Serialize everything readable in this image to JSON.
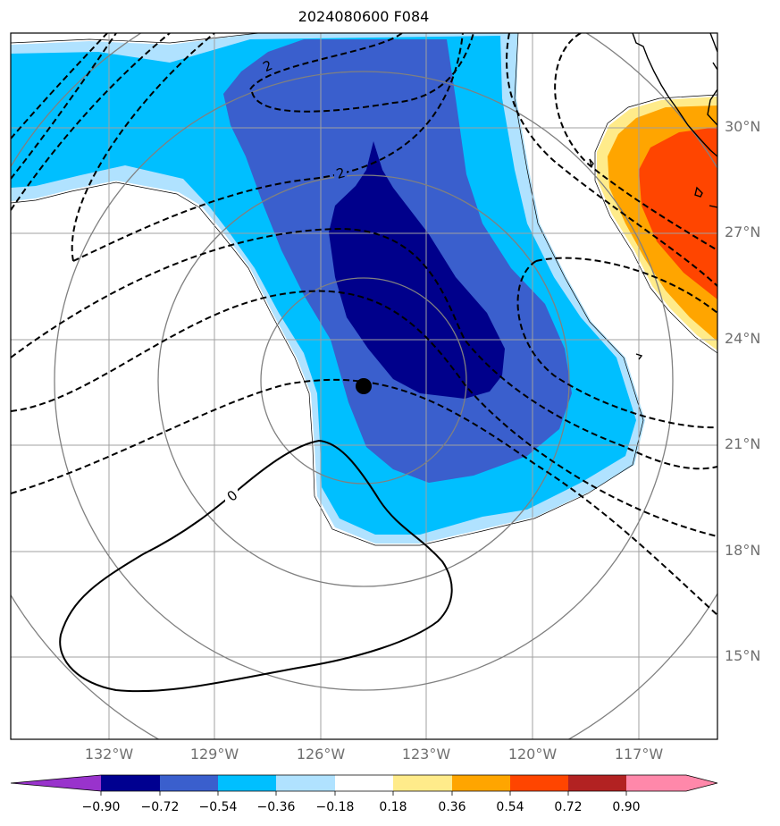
{
  "title": "2024080600 F084",
  "axes": {
    "lat_labels": [
      "30°N",
      "27°N",
      "24°N",
      "21°N",
      "18°N",
      "15°N"
    ],
    "lon_labels": [
      "132°W",
      "129°W",
      "126°W",
      "123°W",
      "120°W",
      "117°W"
    ],
    "lon_extent": [
      -134.8,
      -114.8
    ],
    "lat_extent": [
      12.7,
      32.7
    ]
  },
  "contour_labels": [
    "2",
    "2",
    "0"
  ],
  "contour_line_style": {
    "negative": "dashed",
    "zero": "solid",
    "color": "#000000"
  },
  "storm_center_marker": {
    "lon": -124.9,
    "lat": 22.6,
    "symbol": "filled-circle",
    "color": "#000000"
  },
  "range_rings": {
    "color": "#808080",
    "count": 4
  },
  "colorbar": {
    "tick_labels": [
      "−0.90",
      "−0.72",
      "−0.54",
      "−0.36",
      "−0.18",
      "0.18",
      "0.36",
      "0.54",
      "0.72",
      "0.90"
    ],
    "levels": [
      -0.9,
      -0.72,
      -0.54,
      -0.36,
      -0.18,
      0.18,
      0.36,
      0.54,
      0.72,
      0.9
    ],
    "colors": [
      "#9933cc",
      "#000090",
      "#3a5fcd",
      "#00bfff",
      "#b0e2ff",
      "#ffffff",
      "#ffeb8a",
      "#ffa500",
      "#ff4500",
      "#b22222",
      "#ff88aa"
    ],
    "extend": "both"
  }
}
